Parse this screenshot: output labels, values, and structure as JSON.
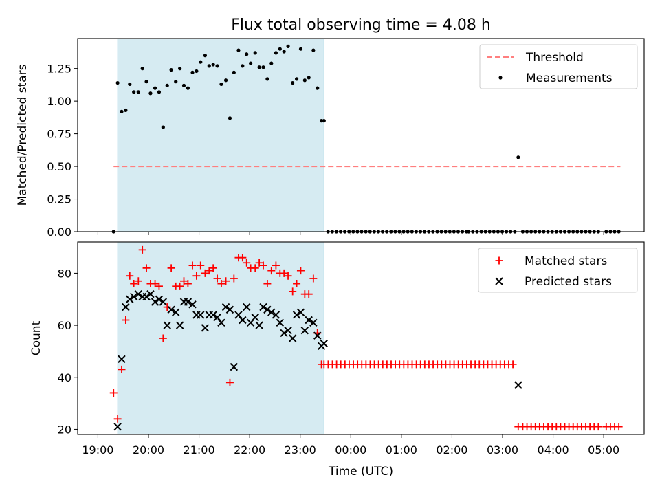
{
  "figure": {
    "title": "Flux total observing time = 4.08 h",
    "xlabel": "Time (UTC)",
    "x_tick_labels": [
      "19:00",
      "20:00",
      "21:00",
      "22:00",
      "23:00",
      "00:00",
      "01:00",
      "02:00",
      "03:00",
      "04:00",
      "05:00"
    ],
    "x_tick_hours": [
      19,
      20,
      21,
      22,
      23,
      24,
      25,
      26,
      27,
      28,
      29
    ],
    "xlim": [
      18.6,
      29.8
    ],
    "colors": {
      "shade": "#add8e6",
      "threshold": "#ff7f7f",
      "measure": "#000000",
      "matched": "#ff0000",
      "predicted": "#000000"
    }
  },
  "chart_data": [
    {
      "type": "scatter",
      "ylabel": "Matched/Predicted stars",
      "ylim": [
        0,
        1.48
      ],
      "y_ticks": [
        0.0,
        0.25,
        0.5,
        0.75,
        1.0,
        1.25
      ],
      "y_tick_labels": [
        "0.00",
        "0.25",
        "0.50",
        "0.75",
        "1.00",
        "1.25"
      ],
      "shaded_region": [
        19.39,
        23.47
      ],
      "legend_position": "top-right",
      "threshold": {
        "name": "Threshold",
        "value": 0.5,
        "x_range": [
          19.31,
          29.33
        ]
      },
      "series": [
        {
          "name": "Measurements",
          "x": [
            19.31,
            19.39,
            19.47,
            19.55,
            19.63,
            19.71,
            19.8,
            19.88,
            19.96,
            20.04,
            20.13,
            20.21,
            20.29,
            20.37,
            20.45,
            20.54,
            20.62,
            20.7,
            20.78,
            20.87,
            20.95,
            21.03,
            21.12,
            21.2,
            21.28,
            21.36,
            21.44,
            21.53,
            21.61,
            21.69,
            21.78,
            21.86,
            21.94,
            22.02,
            22.11,
            22.19,
            22.27,
            22.35,
            22.43,
            22.52,
            22.6,
            22.68,
            22.76,
            22.85,
            22.93,
            23.01,
            23.09,
            23.17,
            23.26,
            23.34,
            23.42,
            23.47,
            27.31
          ],
          "y": [
            0.0,
            1.14,
            0.92,
            0.93,
            1.13,
            1.07,
            1.07,
            1.25,
            1.15,
            1.06,
            1.1,
            1.07,
            0.8,
            1.12,
            1.24,
            1.15,
            1.25,
            1.12,
            1.1,
            1.22,
            1.23,
            1.3,
            1.35,
            1.27,
            1.28,
            1.27,
            1.13,
            1.16,
            0.87,
            1.22,
            1.39,
            1.27,
            1.36,
            1.29,
            1.37,
            1.26,
            1.26,
            1.17,
            1.29,
            1.37,
            1.4,
            1.38,
            1.42,
            1.14,
            1.17,
            1.4,
            1.16,
            1.18,
            1.39,
            1.1,
            0.85,
            0.85,
            0.57
          ],
          "zero_runs": [
            {
              "from": 23.55,
              "to": 26.3,
              "step": 0.083
            },
            {
              "from": 26.33,
              "to": 27.25,
              "step": 0.083
            },
            {
              "from": 27.4,
              "to": 28.95,
              "step": 0.083
            },
            {
              "from": 29.05,
              "to": 29.33,
              "step": 0.083
            }
          ]
        }
      ]
    },
    {
      "type": "scatter",
      "ylabel": "Count",
      "ylim": [
        18,
        92
      ],
      "y_ticks": [
        20,
        40,
        60,
        80
      ],
      "y_tick_labels": [
        "20",
        "40",
        "60",
        "80"
      ],
      "shaded_region": [
        19.39,
        23.47
      ],
      "legend_position": "top-right",
      "series": [
        {
          "name": "Matched stars",
          "marker": "plus",
          "x": [
            19.31,
            19.39,
            19.47,
            19.55,
            19.63,
            19.71,
            19.8,
            19.88,
            19.96,
            20.04,
            20.13,
            20.21,
            20.29,
            20.37,
            20.45,
            20.54,
            20.62,
            20.7,
            20.78,
            20.87,
            20.95,
            21.03,
            21.12,
            21.2,
            21.28,
            21.36,
            21.44,
            21.53,
            21.61,
            21.69,
            21.78,
            21.86,
            21.94,
            22.02,
            22.11,
            22.19,
            22.27,
            22.35,
            22.43,
            22.52,
            22.6,
            22.68,
            22.76,
            22.85,
            22.93,
            23.01,
            23.09,
            23.17,
            23.26,
            23.34,
            23.42,
            27.31
          ],
          "y": [
            34,
            24,
            43,
            62,
            79,
            76,
            77,
            89,
            82,
            76,
            76,
            75,
            55,
            67,
            82,
            75,
            75,
            77,
            76,
            83,
            79,
            83,
            80,
            81,
            82,
            78,
            76,
            77,
            38,
            78,
            86,
            86,
            84,
            82,
            82,
            84,
            83,
            76,
            81,
            83,
            80,
            80,
            79,
            73,
            76,
            81,
            72,
            72,
            78,
            57,
            45,
            21
          ],
          "constant_runs": [
            {
              "from": 23.47,
              "to": 27.25,
              "step": 0.083,
              "value": 45
            },
            {
              "from": 27.4,
              "to": 28.95,
              "step": 0.083,
              "value": 21
            },
            {
              "from": 29.05,
              "to": 29.33,
              "step": 0.083,
              "value": 21
            }
          ]
        },
        {
          "name": "Predicted stars",
          "marker": "x",
          "x": [
            19.39,
            19.47,
            19.55,
            19.63,
            19.71,
            19.8,
            19.88,
            19.96,
            20.04,
            20.13,
            20.21,
            20.29,
            20.37,
            20.45,
            20.54,
            20.62,
            20.7,
            20.78,
            20.87,
            20.95,
            21.03,
            21.12,
            21.2,
            21.28,
            21.36,
            21.44,
            21.53,
            21.61,
            21.69,
            21.78,
            21.86,
            21.94,
            22.02,
            22.11,
            22.19,
            22.27,
            22.35,
            22.43,
            22.52,
            22.6,
            22.68,
            22.76,
            22.85,
            22.93,
            23.01,
            23.09,
            23.17,
            23.26,
            23.34,
            23.42,
            23.47,
            27.31
          ],
          "y": [
            21,
            47,
            67,
            70,
            71,
            72,
            71,
            71,
            72,
            69,
            70,
            69,
            60,
            66,
            65,
            60,
            69,
            69,
            68,
            64,
            64,
            59,
            64,
            64,
            63,
            61,
            67,
            66,
            44,
            64,
            62,
            67,
            61,
            63,
            60,
            67,
            66,
            65,
            64,
            61,
            57,
            58,
            55,
            64,
            65,
            58,
            62,
            61,
            56,
            52,
            53,
            37
          ]
        }
      ]
    }
  ]
}
